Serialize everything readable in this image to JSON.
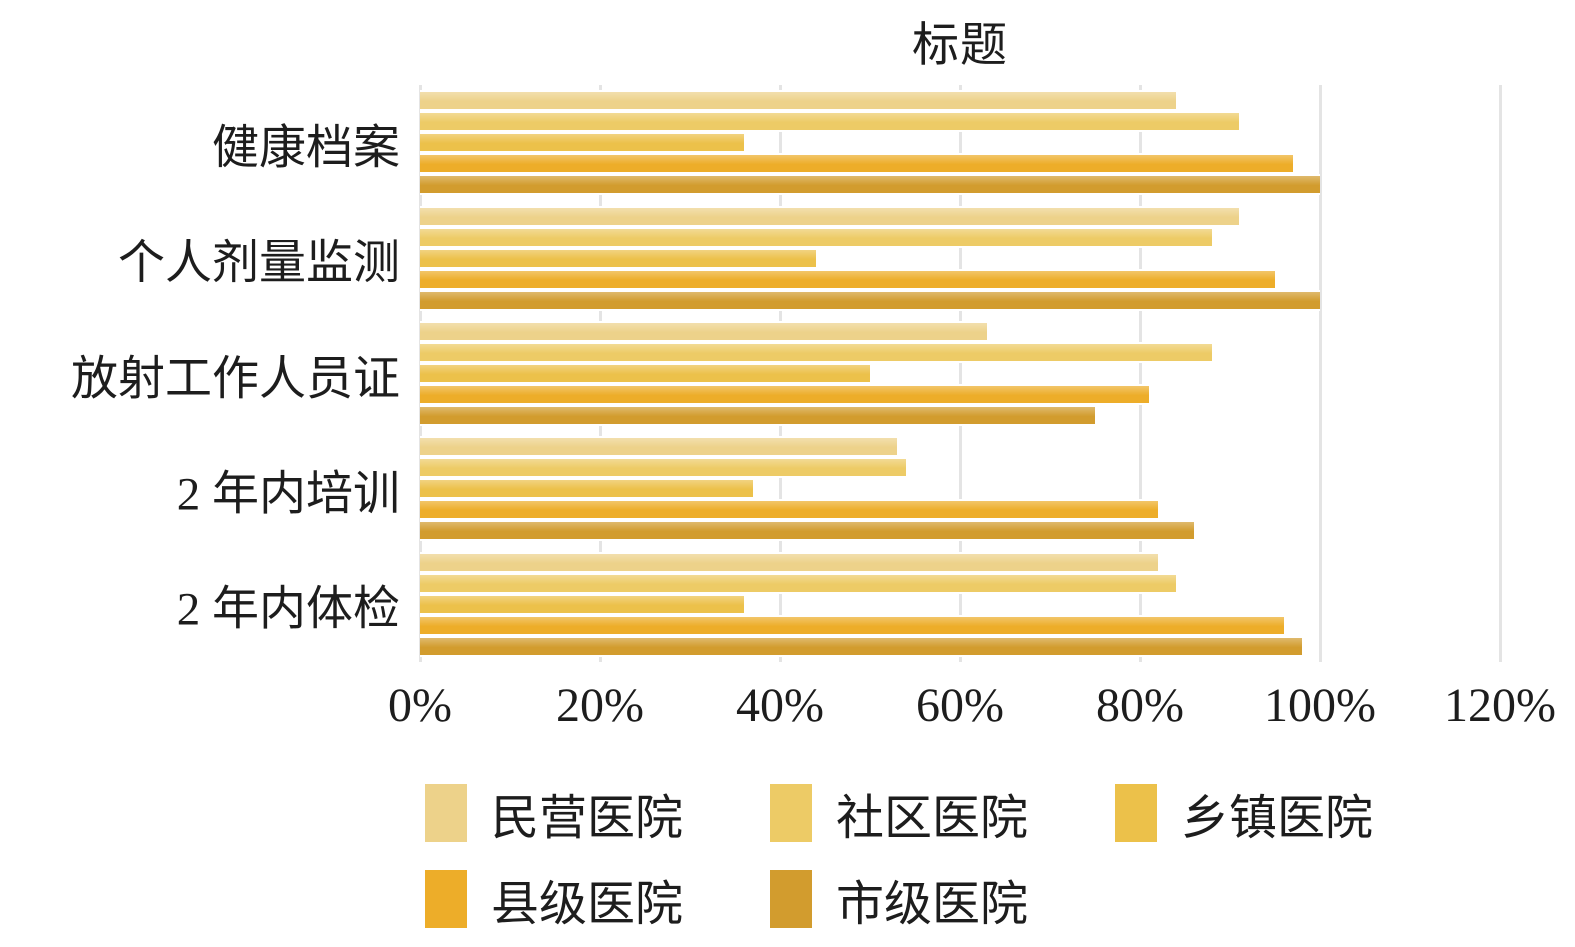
{
  "chart_data": {
    "type": "bar",
    "orientation": "horizontal",
    "title": "标题",
    "xlabel": "",
    "ylabel": "",
    "categories": [
      "健康档案",
      "个人剂量监测",
      "放射工作人员证",
      "2 年内培训",
      "2 年内体检"
    ],
    "series": [
      {
        "name": "民营医院",
        "color": "#EDD28A",
        "values": [
          84,
          91,
          63,
          53,
          82
        ]
      },
      {
        "name": "社区医院",
        "color": "#EDCB66",
        "values": [
          91,
          88,
          88,
          54,
          84
        ]
      },
      {
        "name": "乡镇医院",
        "color": "#ECC14A",
        "values": [
          36,
          44,
          50,
          37,
          36
        ]
      },
      {
        "name": "县级医院",
        "color": "#EDAD29",
        "values": [
          97,
          95,
          81,
          82,
          96
        ]
      },
      {
        "name": "市级医院",
        "color": "#D29C2E",
        "values": [
          100,
          100,
          75,
          86,
          98
        ]
      }
    ],
    "value_unit": "%",
    "xlim": [
      0,
      120
    ],
    "x_ticks": [
      "0%",
      "20%",
      "40%",
      "60%",
      "80%",
      "100%",
      "120%"
    ],
    "grid": true,
    "gridline_color": "#E4E4E4",
    "text_color": "#1D1D1D",
    "background": "#FFFFFF",
    "legend_position": "bottom"
  }
}
